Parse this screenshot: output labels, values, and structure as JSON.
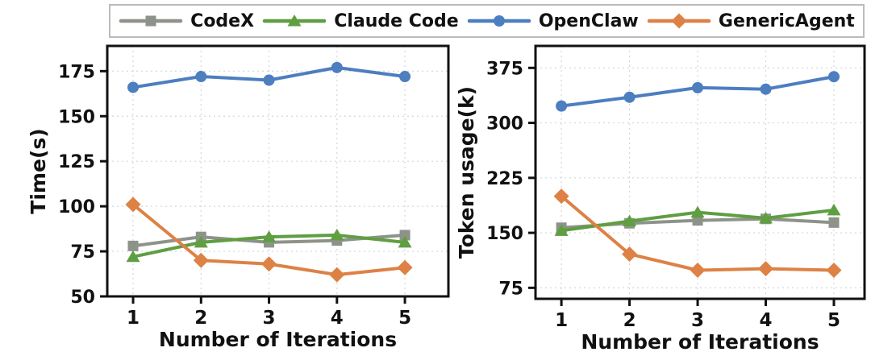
{
  "figure": {
    "background": "#ffffff"
  },
  "legend": {
    "border_color": "#bcbcbc",
    "items": [
      {
        "label": "CodeX",
        "color": "#8e938a",
        "marker": "square"
      },
      {
        "label": "Claude Code",
        "color": "#5f9e41",
        "marker": "triangle"
      },
      {
        "label": "OpenClaw",
        "color": "#4c7ec0",
        "marker": "circle"
      },
      {
        "label": "GenericAgent",
        "color": "#dd8145",
        "marker": "diamond"
      }
    ]
  },
  "chart_data": [
    {
      "type": "line",
      "title": "",
      "xlabel": "Number of Iterations",
      "ylabel": "Time(s)",
      "x": [
        1,
        2,
        3,
        4,
        5
      ],
      "xticks": [
        1,
        2,
        3,
        4,
        5
      ],
      "yticks": [
        50,
        75,
        100,
        125,
        150,
        175
      ],
      "xlim": [
        0.62,
        5.64
      ],
      "ylim": [
        50,
        189
      ],
      "grid": true,
      "legend_position": "top",
      "series": [
        {
          "name": "CodeX",
          "values": [
            78,
            83,
            80,
            81,
            84
          ]
        },
        {
          "name": "Claude Code",
          "values": [
            72,
            80,
            83,
            84,
            80
          ]
        },
        {
          "name": "OpenClaw",
          "values": [
            166,
            172,
            170,
            177,
            172
          ]
        },
        {
          "name": "GenericAgent",
          "values": [
            101,
            70,
            68,
            62,
            66
          ]
        }
      ]
    },
    {
      "type": "line",
      "title": "",
      "xlabel": "Number of Iterations",
      "ylabel": "Token usage(k)",
      "x": [
        1,
        2,
        3,
        4,
        5
      ],
      "xticks": [
        1,
        2,
        3,
        4,
        5
      ],
      "yticks": [
        75,
        150,
        225,
        300,
        375
      ],
      "xlim": [
        0.62,
        5.45
      ],
      "ylim": [
        60,
        405
      ],
      "grid": true,
      "legend_position": "top",
      "series": [
        {
          "name": "CodeX",
          "values": [
            157,
            163,
            167,
            169,
            164
          ]
        },
        {
          "name": "Claude Code",
          "values": [
            153,
            166,
            178,
            170,
            181
          ]
        },
        {
          "name": "OpenClaw",
          "values": [
            323,
            335,
            348,
            346,
            363
          ]
        },
        {
          "name": "GenericAgent",
          "values": [
            200,
            121,
            99,
            101,
            99
          ]
        }
      ]
    }
  ],
  "style": {
    "grid_color": "#d6d6d6",
    "axis_color": "#111111",
    "text_color": "#111111",
    "line_width": 4,
    "tick_len": 9
  }
}
